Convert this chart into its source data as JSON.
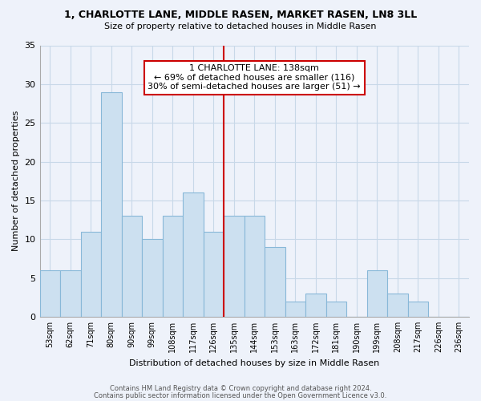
{
  "title": "1, CHARLOTTE LANE, MIDDLE RASEN, MARKET RASEN, LN8 3LL",
  "subtitle": "Size of property relative to detached houses in Middle Rasen",
  "xlabel": "Distribution of detached houses by size in Middle Rasen",
  "ylabel": "Number of detached properties",
  "categories": [
    "53sqm",
    "62sqm",
    "71sqm",
    "80sqm",
    "90sqm",
    "99sqm",
    "108sqm",
    "117sqm",
    "126sqm",
    "135sqm",
    "144sqm",
    "153sqm",
    "163sqm",
    "172sqm",
    "181sqm",
    "190sqm",
    "199sqm",
    "208sqm",
    "217sqm",
    "226sqm",
    "236sqm"
  ],
  "values": [
    6,
    6,
    11,
    29,
    13,
    10,
    13,
    16,
    11,
    13,
    13,
    9,
    2,
    3,
    2,
    0,
    6,
    3,
    2,
    0,
    0
  ],
  "bar_color": "#cce0f0",
  "bar_edge_color": "#88b8d8",
  "marker_label": "1 CHARLOTTE LANE: 138sqm",
  "marker_smaller": "← 69% of detached houses are smaller (116)",
  "marker_larger": "30% of semi-detached houses are larger (51) →",
  "marker_line_color": "#cc0000",
  "annotation_box_color": "#ffffff",
  "annotation_box_edge": "#cc0000",
  "ylim": [
    0,
    35
  ],
  "yticks": [
    0,
    5,
    10,
    15,
    20,
    25,
    30,
    35
  ],
  "grid_color": "#c8d8e8",
  "bg_color": "#eef2fa",
  "footer1": "Contains HM Land Registry data © Crown copyright and database right 2024.",
  "footer2": "Contains public sector information licensed under the Open Government Licence v3.0."
}
